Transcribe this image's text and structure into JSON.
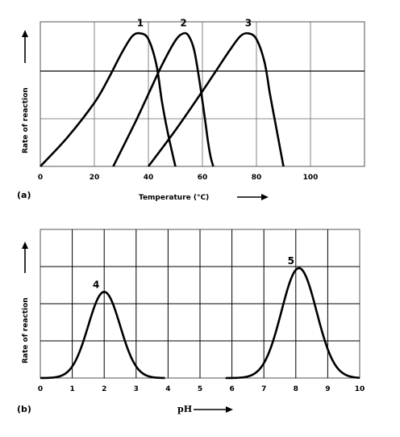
{
  "chart_data": [
    {
      "id": "a",
      "type": "line",
      "panel_label": "(a)",
      "xlabel": "Temperature (°C)",
      "ylabel": "Rate of reaction",
      "xlim": [
        0,
        120
      ],
      "x_ticks": [
        "0",
        "20",
        "40",
        "60",
        "80",
        "100"
      ],
      "grid": true,
      "series": [
        {
          "name": "1",
          "x": [
            0,
            10,
            20,
            25,
            30,
            34,
            37,
            40,
            43,
            45,
            47,
            49,
            50
          ],
          "y": [
            0,
            0.2,
            0.44,
            0.6,
            0.78,
            0.9,
            0.92,
            0.88,
            0.7,
            0.45,
            0.25,
            0.08,
            0
          ]
        },
        {
          "name": "2",
          "x": [
            27,
            35,
            40,
            45,
            50,
            53,
            55,
            57,
            59,
            61,
            62,
            63,
            64
          ],
          "y": [
            0,
            0.3,
            0.5,
            0.7,
            0.87,
            0.92,
            0.9,
            0.8,
            0.58,
            0.32,
            0.18,
            0.07,
            0
          ]
        },
        {
          "name": "3",
          "x": [
            40,
            50,
            60,
            65,
            70,
            74,
            77,
            80,
            83,
            85,
            87,
            89,
            90
          ],
          "y": [
            0,
            0.25,
            0.52,
            0.66,
            0.8,
            0.9,
            0.92,
            0.88,
            0.72,
            0.5,
            0.3,
            0.1,
            0
          ]
        }
      ]
    },
    {
      "id": "b",
      "type": "line",
      "panel_label": "(b)",
      "xlabel": "pH",
      "ylabel": "Rate of reaction",
      "xlim": [
        0,
        10
      ],
      "x_ticks": [
        "0",
        "1",
        "2",
        "3",
        "4",
        "5",
        "6",
        "7",
        "8",
        "9",
        "10"
      ],
      "grid": true,
      "series": [
        {
          "name": "4",
          "mean": 2,
          "sd": 0.5,
          "peak": 0.58,
          "x_range": [
            0,
            3.9
          ]
        },
        {
          "name": "5",
          "mean": 8.1,
          "sd": 0.55,
          "peak": 0.74,
          "x_range": [
            5.8,
            10
          ]
        }
      ]
    }
  ]
}
